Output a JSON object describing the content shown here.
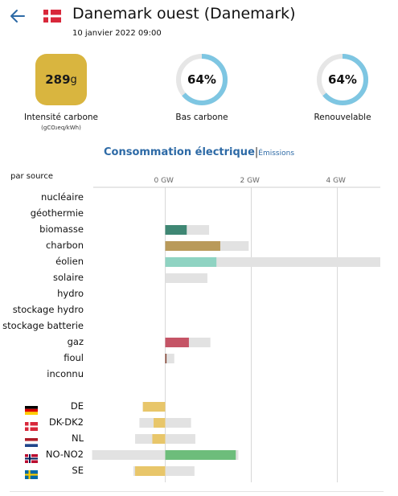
{
  "header": {
    "title": "Danemark ouest (Danemark)",
    "date": "10 janvier 2022 09:00",
    "back_icon": "arrow-left-icon",
    "flag_icon": "flag-denmark-icon"
  },
  "metrics": {
    "carbon_intensity": {
      "value": "289",
      "unit": "g",
      "label": "Intensité carbone",
      "sublabel": "(gCO₂eq/kWh)",
      "color": "#d9b53f"
    },
    "low_carbon": {
      "value": "64%",
      "fraction": 0.64,
      "label": "Bas carbone"
    },
    "renewable": {
      "value": "64%",
      "fraction": 0.64,
      "label": "Renouvelable"
    },
    "ring_color": "#7ec6e2",
    "ring_track": "#e6e6e6"
  },
  "chart_tabs": {
    "active": "Consommation électrique",
    "separator": "|",
    "other": "Émissions"
  },
  "chart_data": {
    "type": "bar",
    "orientation": "horizontal",
    "subtitle": "par source",
    "x_unit": "GW",
    "x_ticks": [
      "0 GW",
      "2 GW",
      "4 GW"
    ],
    "x_tick_values": [
      0,
      2,
      4
    ],
    "xlim": [
      -1.7,
      5.0
    ],
    "sources": [
      {
        "name": "nucléaire",
        "production": 0,
        "capacity": 0,
        "color": "#999999"
      },
      {
        "name": "géothermie",
        "production": 0,
        "capacity": 0,
        "color": "#999999"
      },
      {
        "name": "biomasse",
        "production": 0.5,
        "capacity": 1.02,
        "color": "#3f8774"
      },
      {
        "name": "charbon",
        "production": 1.28,
        "capacity": 1.94,
        "color": "#b99a5a"
      },
      {
        "name": "éolien",
        "production": 1.19,
        "capacity": 5.0,
        "color": "#8fd3c2"
      },
      {
        "name": "solaire",
        "production": 0,
        "capacity": 0.98,
        "color": "#f3c53a"
      },
      {
        "name": "hydro",
        "production": 0,
        "capacity": 0,
        "color": "#2a7ab0"
      },
      {
        "name": "stockage hydro",
        "production": 0,
        "capacity": 0,
        "color": "#0b4f80"
      },
      {
        "name": "stockage batterie",
        "production": 0,
        "capacity": 0,
        "color": "#7a9ad2"
      },
      {
        "name": "gaz",
        "production": 0.55,
        "capacity": 1.05,
        "color": "#c55466"
      },
      {
        "name": "fioul",
        "production": 0.03,
        "capacity": 0.21,
        "color": "#8a4b3b"
      },
      {
        "name": "inconnu",
        "production": 0,
        "capacity": 0,
        "color": "#aaaaaa"
      }
    ],
    "exchanges": [
      {
        "name": "DE",
        "flag": "flag-germany-icon",
        "value": -0.52,
        "capacity_min": -0.52,
        "capacity_max": 0,
        "color": "#e8c66a"
      },
      {
        "name": "DK-DK2",
        "flag": "flag-denmark-icon",
        "value": -0.27,
        "capacity_min": -0.6,
        "capacity_max": 0.6,
        "color": "#e8c66a"
      },
      {
        "name": "NL",
        "flag": "flag-netherlands-icon",
        "value": -0.3,
        "capacity_min": -0.7,
        "capacity_max": 0.7,
        "color": "#e8c66a"
      },
      {
        "name": "NO-NO2",
        "flag": "flag-norway-icon",
        "value": 1.64,
        "capacity_min": -1.7,
        "capacity_max": 1.7,
        "color": "#6dbd7b"
      },
      {
        "name": "SE",
        "flag": "flag-sweden-icon",
        "value": -0.7,
        "capacity_min": -0.74,
        "capacity_max": 0.68,
        "color": "#e8c66a"
      }
    ]
  }
}
